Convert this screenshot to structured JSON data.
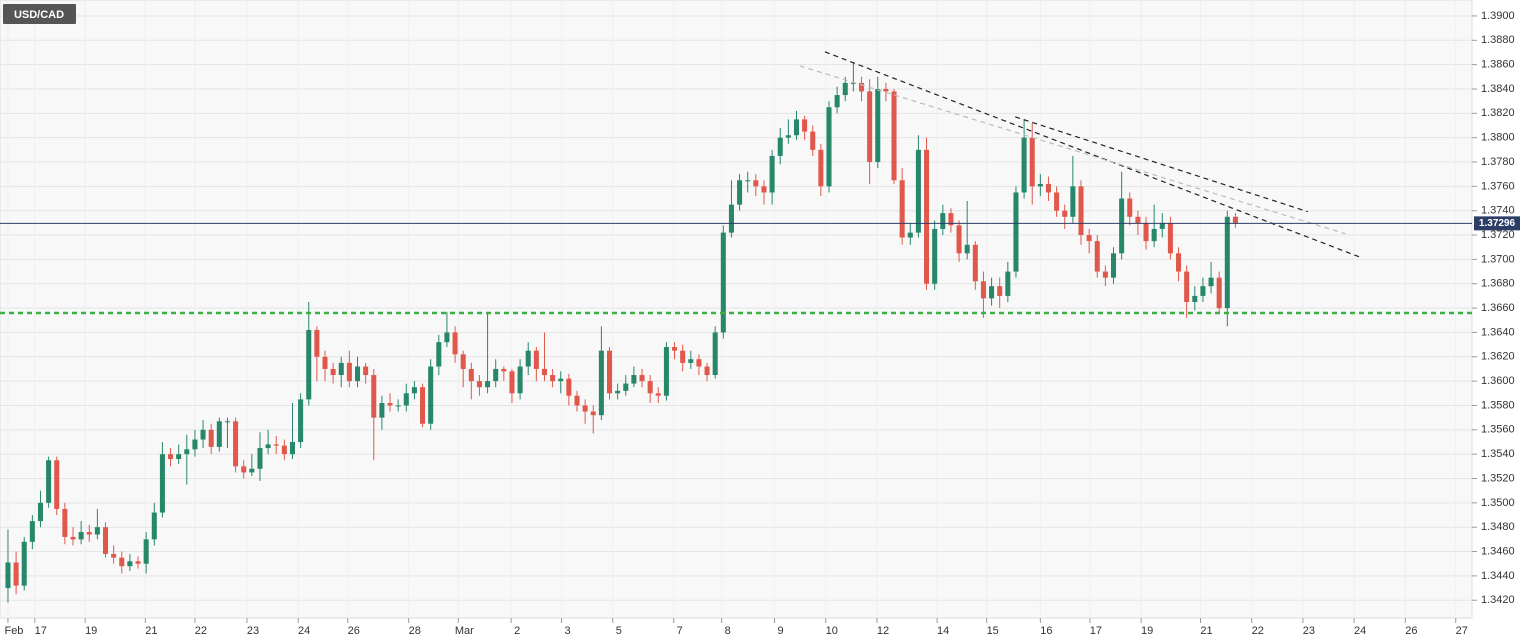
{
  "chart_data": {
    "type": "candlestick",
    "title": "USD/CAD",
    "up_color": "#26876b",
    "down_color": "#e0584b",
    "grid": true,
    "xlim": [
      -0.98,
      180.1
    ],
    "xticks": [
      {
        "value": 0,
        "label": "Feb"
      },
      {
        "value": 3.3,
        "label": "17"
      },
      {
        "value": 9.5,
        "label": "19"
      },
      {
        "value": 16.9,
        "label": "21"
      },
      {
        "value": 23.0,
        "label": "22"
      },
      {
        "value": 29.4,
        "label": "23"
      },
      {
        "value": 35.7,
        "label": "24"
      },
      {
        "value": 41.8,
        "label": "26"
      },
      {
        "value": 49.3,
        "label": "28"
      },
      {
        "value": 55.4,
        "label": "Mar"
      },
      {
        "value": 61.9,
        "label": "2"
      },
      {
        "value": 68.1,
        "label": "3"
      },
      {
        "value": 74.4,
        "label": "5"
      },
      {
        "value": 81.9,
        "label": "7"
      },
      {
        "value": 87.8,
        "label": "8"
      },
      {
        "value": 94.3,
        "label": "9"
      },
      {
        "value": 100.6,
        "label": "10"
      },
      {
        "value": 106.9,
        "label": "12"
      },
      {
        "value": 114.3,
        "label": "14"
      },
      {
        "value": 120.4,
        "label": "15"
      },
      {
        "value": 127.0,
        "label": "16"
      },
      {
        "value": 133.1,
        "label": "17"
      },
      {
        "value": 139.4,
        "label": "19"
      },
      {
        "value": 146.7,
        "label": "21"
      },
      {
        "value": 153.0,
        "label": "22"
      },
      {
        "value": 159.3,
        "label": "23"
      },
      {
        "value": 165.6,
        "label": "24"
      },
      {
        "value": 171.9,
        "label": "26"
      },
      {
        "value": 178.1,
        "label": "27"
      }
    ],
    "ylim": [
      1.34054,
      1.39131
    ],
    "yticks": [
      {
        "value": 1.342,
        "label": "1.3420"
      },
      {
        "value": 1.344,
        "label": "1.3440"
      },
      {
        "value": 1.346,
        "label": "1.3460"
      },
      {
        "value": 1.348,
        "label": "1.3480"
      },
      {
        "value": 1.35,
        "label": "1.3500"
      },
      {
        "value": 1.352,
        "label": "1.3520"
      },
      {
        "value": 1.354,
        "label": "1.3540"
      },
      {
        "value": 1.356,
        "label": "1.3560"
      },
      {
        "value": 1.358,
        "label": "1.3580"
      },
      {
        "value": 1.36,
        "label": "1.3600"
      },
      {
        "value": 1.362,
        "label": "1.3620"
      },
      {
        "value": 1.364,
        "label": "1.3640"
      },
      {
        "value": 1.366,
        "label": "1.3660"
      },
      {
        "value": 1.368,
        "label": "1.3680"
      },
      {
        "value": 1.37,
        "label": "1.3700"
      },
      {
        "value": 1.372,
        "label": "1.3720"
      },
      {
        "value": 1.374,
        "label": "1.3740"
      },
      {
        "value": 1.376,
        "label": "1.3760"
      },
      {
        "value": 1.378,
        "label": "1.3780"
      },
      {
        "value": 1.38,
        "label": "1.3800"
      },
      {
        "value": 1.382,
        "label": "1.3820"
      },
      {
        "value": 1.384,
        "label": "1.3840"
      },
      {
        "value": 1.386,
        "label": "1.3860"
      },
      {
        "value": 1.388,
        "label": "1.3880"
      },
      {
        "value": 1.39,
        "label": "1.3900"
      }
    ],
    "current_price": 1.37296,
    "current_price_color": "#2c3d66",
    "support_level": 1.3656,
    "support_color": "#3cb043",
    "trend_lines": [
      {
        "x": [
          100.5,
          166.5
        ],
        "y": [
          1.38705,
          1.37014
        ],
        "color": "#222222"
      },
      {
        "x": [
          97.4,
          164.5
        ],
        "y": [
          1.3859,
          1.37211
        ],
        "color": "#bbbbbb"
      },
      {
        "x": [
          123.9,
          159.9
        ],
        "y": [
          1.38171,
          1.37392
        ],
        "color": "#222222"
      }
    ],
    "open": [
      1.343,
      1.3451,
      1.3432,
      1.3468,
      1.3485,
      1.35,
      1.3535,
      1.3495,
      1.3472,
      1.347,
      1.3476,
      1.3474,
      1.348,
      1.3458,
      1.3455,
      1.3448,
      1.3452,
      1.345,
      1.347,
      1.3492,
      1.354,
      1.3536,
      1.354,
      1.3544,
      1.3552,
      1.356,
      1.3546,
      1.3567,
      1.3567,
      1.353,
      1.3525,
      1.3528,
      1.3545,
      1.3548,
      1.3547,
      1.354,
      1.355,
      1.3585,
      1.3642,
      1.362,
      1.361,
      1.3605,
      1.3615,
      1.36,
      1.3612,
      1.3605,
      1.357,
      1.3582,
      1.358,
      1.358,
      1.359,
      1.3595,
      1.3565,
      1.3612,
      1.3632,
      1.364,
      1.3622,
      1.361,
      1.36,
      1.3595,
      1.36,
      1.361,
      1.3608,
      1.359,
      1.3612,
      1.3625,
      1.361,
      1.3605,
      1.36,
      1.3602,
      1.3588,
      1.358,
      1.3575,
      1.3572,
      1.3625,
      1.359,
      1.3592,
      1.3598,
      1.3605,
      1.36,
      1.359,
      1.3588,
      1.3628,
      1.3625,
      1.3615,
      1.3618,
      1.3612,
      1.3605,
      1.364,
      1.3722,
      1.3745,
      1.3765,
      1.3765,
      1.376,
      1.3755,
      1.3785,
      1.38,
      1.3802,
      1.3815,
      1.3805,
      1.379,
      1.376,
      1.3825,
      1.3835,
      1.3845,
      1.3845,
      1.3838,
      1.378,
      1.384,
      1.3838,
      1.3765,
      1.3718,
      1.3722,
      1.379,
      1.368,
      1.3725,
      1.3738,
      1.3728,
      1.3705,
      1.3712,
      1.3682,
      1.3668,
      1.3678,
      1.367,
      1.369,
      1.3755,
      1.38,
      1.376,
      1.3762,
      1.3755,
      1.374,
      1.3735,
      1.376,
      1.372,
      1.3715,
      1.369,
      1.3685,
      1.3705,
      1.375,
      1.3735,
      1.373,
      1.3715,
      1.3725,
      1.373,
      1.3705,
      1.369,
      1.3665,
      1.367,
      1.3678,
      1.3685,
      1.366,
      1.3735
    ],
    "high": [
      1.3478,
      1.346,
      1.3472,
      1.349,
      1.351,
      1.3538,
      1.3538,
      1.35,
      1.348,
      1.3485,
      1.3482,
      1.3495,
      1.3484,
      1.3465,
      1.346,
      1.3458,
      1.3456,
      1.3476,
      1.35,
      1.355,
      1.3545,
      1.3548,
      1.3556,
      1.356,
      1.3568,
      1.3565,
      1.357,
      1.357,
      1.357,
      1.3535,
      1.354,
      1.3558,
      1.356,
      1.3555,
      1.3552,
      1.3582,
      1.359,
      1.3665,
      1.3645,
      1.3625,
      1.3615,
      1.362,
      1.3625,
      1.362,
      1.3615,
      1.361,
      1.3588,
      1.359,
      1.3585,
      1.3598,
      1.36,
      1.3598,
      1.3618,
      1.3638,
      1.3657,
      1.3645,
      1.3625,
      1.3615,
      1.3605,
      1.3655,
      1.3618,
      1.3612,
      1.361,
      1.3618,
      1.3632,
      1.3628,
      1.364,
      1.361,
      1.3608,
      1.3606,
      1.3592,
      1.3585,
      1.358,
      1.3645,
      1.3628,
      1.3598,
      1.3605,
      1.3612,
      1.361,
      1.3605,
      1.3595,
      1.3632,
      1.3632,
      1.363,
      1.3625,
      1.3622,
      1.3615,
      1.3645,
      1.3728,
      1.3765,
      1.377,
      1.3772,
      1.377,
      1.3765,
      1.379,
      1.3808,
      1.3815,
      1.3822,
      1.3818,
      1.381,
      1.3795,
      1.383,
      1.3842,
      1.385,
      1.3862,
      1.385,
      1.3848,
      1.385,
      1.3845,
      1.384,
      1.3775,
      1.373,
      1.3802,
      1.38,
      1.3732,
      1.3745,
      1.3742,
      1.3732,
      1.3748,
      1.3715,
      1.369,
      1.3685,
      1.3685,
      1.3698,
      1.376,
      1.3815,
      1.3812,
      1.377,
      1.3768,
      1.376,
      1.3745,
      1.3785,
      1.3765,
      1.3725,
      1.372,
      1.3695,
      1.371,
      1.3772,
      1.3755,
      1.374,
      1.3735,
      1.3745,
      1.3738,
      1.3735,
      1.371,
      1.3695,
      1.3678,
      1.3685,
      1.3698,
      1.369,
      1.374,
      1.3738
    ],
    "low": [
      1.3418,
      1.3425,
      1.3428,
      1.3462,
      1.348,
      1.3496,
      1.349,
      1.3466,
      1.3465,
      1.3466,
      1.3468,
      1.347,
      1.3455,
      1.345,
      1.3442,
      1.3444,
      1.3446,
      1.3442,
      1.3465,
      1.3488,
      1.353,
      1.3532,
      1.3515,
      1.3538,
      1.3545,
      1.354,
      1.3542,
      1.3545,
      1.3525,
      1.352,
      1.3522,
      1.3518,
      1.354,
      1.354,
      1.3535,
      1.3536,
      1.3545,
      1.358,
      1.36,
      1.36,
      1.3598,
      1.3595,
      1.3595,
      1.3595,
      1.3598,
      1.3535,
      1.356,
      1.3575,
      1.3575,
      1.3575,
      1.3585,
      1.3562,
      1.356,
      1.3605,
      1.3628,
      1.3615,
      1.3595,
      1.3585,
      1.3588,
      1.359,
      1.3595,
      1.36,
      1.3582,
      1.3585,
      1.3605,
      1.36,
      1.36,
      1.3595,
      1.359,
      1.358,
      1.3575,
      1.3565,
      1.3557,
      1.3568,
      1.3585,
      1.3585,
      1.3588,
      1.3595,
      1.3595,
      1.3582,
      1.3582,
      1.3584,
      1.3618,
      1.3608,
      1.361,
      1.3605,
      1.36,
      1.3602,
      1.3635,
      1.3718,
      1.374,
      1.3755,
      1.3752,
      1.3745,
      1.3745,
      1.3778,
      1.3795,
      1.3798,
      1.3798,
      1.3785,
      1.3752,
      1.3755,
      1.382,
      1.383,
      1.3838,
      1.383,
      1.3762,
      1.3775,
      1.383,
      1.3762,
      1.3712,
      1.3712,
      1.3718,
      1.3675,
      1.3675,
      1.372,
      1.3722,
      1.3698,
      1.37,
      1.3675,
      1.3652,
      1.3662,
      1.366,
      1.3665,
      1.3685,
      1.375,
      1.3745,
      1.3752,
      1.3748,
      1.3735,
      1.3725,
      1.373,
      1.3712,
      1.3705,
      1.3685,
      1.3678,
      1.368,
      1.37,
      1.3728,
      1.372,
      1.3708,
      1.371,
      1.3718,
      1.37,
      1.3682,
      1.3652,
      1.3658,
      1.3665,
      1.3672,
      1.3655,
      1.3645,
      1.3726
    ],
    "close": [
      1.3451,
      1.3432,
      1.3468,
      1.3485,
      1.35,
      1.3535,
      1.3495,
      1.3472,
      1.347,
      1.3476,
      1.3474,
      1.348,
      1.3458,
      1.3455,
      1.3448,
      1.3452,
      1.345,
      1.347,
      1.3492,
      1.354,
      1.3536,
      1.354,
      1.3544,
      1.3552,
      1.356,
      1.3546,
      1.3567,
      1.3567,
      1.353,
      1.3525,
      1.3528,
      1.3545,
      1.3548,
      1.3547,
      1.354,
      1.355,
      1.3585,
      1.3642,
      1.362,
      1.361,
      1.3605,
      1.3615,
      1.36,
      1.3612,
      1.3605,
      1.357,
      1.3582,
      1.358,
      1.358,
      1.359,
      1.3595,
      1.3565,
      1.3612,
      1.3632,
      1.364,
      1.3622,
      1.361,
      1.36,
      1.3595,
      1.36,
      1.361,
      1.3608,
      1.359,
      1.3612,
      1.3625,
      1.361,
      1.3605,
      1.36,
      1.3602,
      1.3588,
      1.358,
      1.3575,
      1.3572,
      1.3625,
      1.359,
      1.3592,
      1.3598,
      1.3605,
      1.36,
      1.359,
      1.3588,
      1.3628,
      1.3625,
      1.3615,
      1.3618,
      1.3612,
      1.3605,
      1.364,
      1.3722,
      1.3745,
      1.3765,
      1.3765,
      1.376,
      1.3755,
      1.3785,
      1.38,
      1.3802,
      1.3815,
      1.3805,
      1.379,
      1.376,
      1.3825,
      1.3835,
      1.3845,
      1.3845,
      1.3838,
      1.378,
      1.384,
      1.3838,
      1.3765,
      1.3718,
      1.3722,
      1.379,
      1.368,
      1.3725,
      1.3738,
      1.3728,
      1.3705,
      1.3712,
      1.3682,
      1.3668,
      1.3678,
      1.367,
      1.369,
      1.3755,
      1.38,
      1.376,
      1.3762,
      1.3755,
      1.374,
      1.3735,
      1.376,
      1.372,
      1.3715,
      1.369,
      1.3685,
      1.3705,
      1.375,
      1.3735,
      1.373,
      1.3715,
      1.3725,
      1.373,
      1.3705,
      1.369,
      1.3665,
      1.367,
      1.3678,
      1.3685,
      1.366,
      1.3735,
      1.373
    ]
  }
}
